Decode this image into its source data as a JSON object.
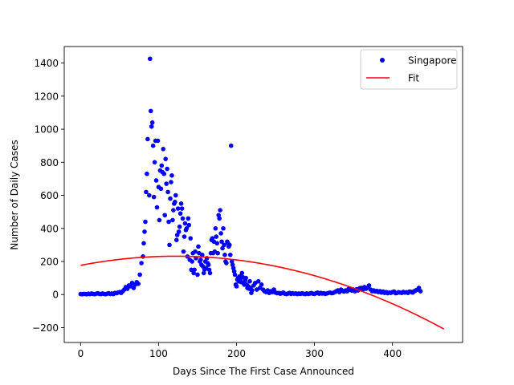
{
  "chart_data": {
    "type": "scatter",
    "title": "",
    "xlabel": "Days Since The First Case Announced",
    "ylabel": "Number of Daily Cases",
    "xlim": [
      -21,
      490
    ],
    "ylim": [
      -290,
      1500
    ],
    "xticks": [
      0,
      100,
      200,
      300,
      400
    ],
    "yticks": [
      -200,
      0,
      200,
      400,
      600,
      800,
      1000,
      1200,
      1400
    ],
    "grid": false,
    "legend": {
      "placement": "top-right",
      "entries": [
        "Singapore",
        "Fit"
      ]
    },
    "series": [
      {
        "name": "Singapore",
        "kind": "scatter",
        "color": "#0000ff",
        "points": [
          [
            0,
            3
          ],
          [
            2,
            2
          ],
          [
            4,
            4
          ],
          [
            6,
            3
          ],
          [
            8,
            2
          ],
          [
            10,
            5
          ],
          [
            12,
            3
          ],
          [
            14,
            6
          ],
          [
            16,
            4
          ],
          [
            18,
            2
          ],
          [
            20,
            5
          ],
          [
            22,
            8
          ],
          [
            24,
            4
          ],
          [
            26,
            3
          ],
          [
            28,
            6
          ],
          [
            30,
            4
          ],
          [
            32,
            2
          ],
          [
            34,
            5
          ],
          [
            36,
            8
          ],
          [
            38,
            4
          ],
          [
            40,
            6
          ],
          [
            42,
            3
          ],
          [
            44,
            10
          ],
          [
            46,
            8
          ],
          [
            48,
            12
          ],
          [
            50,
            15
          ],
          [
            52,
            10
          ],
          [
            54,
            20
          ],
          [
            56,
            30
          ],
          [
            58,
            45
          ],
          [
            60,
            35
          ],
          [
            62,
            55
          ],
          [
            64,
            50
          ],
          [
            66,
            70
          ],
          [
            68,
            40
          ],
          [
            70,
            60
          ],
          [
            72,
            75
          ],
          [
            74,
            65
          ],
          [
            76,
            120
          ],
          [
            78,
            190
          ],
          [
            80,
            230
          ],
          [
            81,
            310
          ],
          [
            82,
            380
          ],
          [
            83,
            440
          ],
          [
            84,
            620
          ],
          [
            85,
            730
          ],
          [
            86,
            940
          ],
          [
            88,
            600
          ],
          [
            89,
            1426
          ],
          [
            90,
            1110
          ],
          [
            91,
            1016
          ],
          [
            92,
            1040
          ],
          [
            93,
            900
          ],
          [
            94,
            590
          ],
          [
            95,
            800
          ],
          [
            96,
            930
          ],
          [
            97,
            690
          ],
          [
            98,
            527
          ],
          [
            99,
            930
          ],
          [
            100,
            650
          ],
          [
            101,
            450
          ],
          [
            102,
            750
          ],
          [
            103,
            640
          ],
          [
            104,
            780
          ],
          [
            105,
            740
          ],
          [
            106,
            880
          ],
          [
            107,
            730
          ],
          [
            108,
            480
          ],
          [
            109,
            820
          ],
          [
            110,
            670
          ],
          [
            111,
            760
          ],
          [
            112,
            620
          ],
          [
            113,
            440
          ],
          [
            114,
            300
          ],
          [
            115,
            580
          ],
          [
            116,
            680
          ],
          [
            117,
            720
          ],
          [
            118,
            450
          ],
          [
            119,
            510
          ],
          [
            120,
            550
          ],
          [
            121,
            560
          ],
          [
            122,
            600
          ],
          [
            123,
            330
          ],
          [
            124,
            360
          ],
          [
            125,
            520
          ],
          [
            126,
            380
          ],
          [
            127,
            410
          ],
          [
            128,
            490
          ],
          [
            129,
            550
          ],
          [
            130,
            520
          ],
          [
            131,
            460
          ],
          [
            132,
            260
          ],
          [
            133,
            350
          ],
          [
            134,
            430
          ],
          [
            135,
            390
          ],
          [
            136,
            400
          ],
          [
            137,
            230
          ],
          [
            138,
            460
          ],
          [
            139,
            420
          ],
          [
            140,
            210
          ],
          [
            141,
            340
          ],
          [
            142,
            150
          ],
          [
            143,
            200
          ],
          [
            144,
            250
          ],
          [
            145,
            130
          ],
          [
            146,
            150
          ],
          [
            147,
            260
          ],
          [
            148,
            220
          ],
          [
            150,
            120
          ],
          [
            151,
            290
          ],
          [
            152,
            250
          ],
          [
            153,
            200
          ],
          [
            154,
            210
          ],
          [
            155,
            180
          ],
          [
            156,
            240
          ],
          [
            157,
            170
          ],
          [
            158,
            130
          ],
          [
            159,
            150
          ],
          [
            160,
            200
          ],
          [
            161,
            160
          ],
          [
            162,
            220
          ],
          [
            163,
            190
          ],
          [
            164,
            180
          ],
          [
            165,
            150
          ],
          [
            166,
            130
          ],
          [
            167,
            250
          ],
          [
            168,
            330
          ],
          [
            169,
            340
          ],
          [
            170,
            250
          ],
          [
            171,
            320
          ],
          [
            172,
            260
          ],
          [
            173,
            400
          ],
          [
            174,
            350
          ],
          [
            175,
            310
          ],
          [
            176,
            250
          ],
          [
            177,
            480
          ],
          [
            178,
            460
          ],
          [
            179,
            510
          ],
          [
            180,
            370
          ],
          [
            181,
            320
          ],
          [
            182,
            280
          ],
          [
            183,
            400
          ],
          [
            184,
            300
          ],
          [
            185,
            240
          ],
          [
            186,
            200
          ],
          [
            187,
            190
          ],
          [
            188,
            320
          ],
          [
            189,
            310
          ],
          [
            190,
            290
          ],
          [
            191,
            300
          ],
          [
            192,
            240
          ],
          [
            193,
            900
          ],
          [
            194,
            200
          ],
          [
            195,
            180
          ],
          [
            196,
            160
          ],
          [
            197,
            140
          ],
          [
            198,
            120
          ],
          [
            199,
            60
          ],
          [
            200,
            50
          ],
          [
            201,
            90
          ],
          [
            202,
            100
          ],
          [
            203,
            80
          ],
          [
            204,
            110
          ],
          [
            205,
            95
          ],
          [
            206,
            75
          ],
          [
            207,
            130
          ],
          [
            208,
            105
          ],
          [
            209,
            70
          ],
          [
            210,
            60
          ],
          [
            211,
            85
          ],
          [
            212,
            100
          ],
          [
            213,
            60
          ],
          [
            214,
            40
          ],
          [
            215,
            50
          ],
          [
            216,
            35
          ],
          [
            217,
            80
          ],
          [
            218,
            40
          ],
          [
            219,
            10
          ],
          [
            220,
            25
          ],
          [
            222,
            55
          ],
          [
            224,
            70
          ],
          [
            226,
            30
          ],
          [
            228,
            80
          ],
          [
            230,
            40
          ],
          [
            232,
            60
          ],
          [
            234,
            30
          ],
          [
            236,
            20
          ],
          [
            238,
            15
          ],
          [
            240,
            25
          ],
          [
            242,
            10
          ],
          [
            244,
            20
          ],
          [
            246,
            15
          ],
          [
            248,
            30
          ],
          [
            250,
            12
          ],
          [
            252,
            8
          ],
          [
            254,
            10
          ],
          [
            256,
            5
          ],
          [
            258,
            8
          ],
          [
            260,
            12
          ],
          [
            262,
            5
          ],
          [
            264,
            3
          ],
          [
            266,
            6
          ],
          [
            268,
            10
          ],
          [
            270,
            4
          ],
          [
            272,
            8
          ],
          [
            274,
            5
          ],
          [
            276,
            7
          ],
          [
            278,
            3
          ],
          [
            280,
            6
          ],
          [
            282,
            4
          ],
          [
            284,
            8
          ],
          [
            286,
            5
          ],
          [
            288,
            3
          ],
          [
            290,
            7
          ],
          [
            292,
            4
          ],
          [
            294,
            6
          ],
          [
            296,
            9
          ],
          [
            298,
            5
          ],
          [
            300,
            4
          ],
          [
            302,
            8
          ],
          [
            304,
            12
          ],
          [
            306,
            5
          ],
          [
            308,
            10
          ],
          [
            310,
            6
          ],
          [
            312,
            8
          ],
          [
            314,
            4
          ],
          [
            316,
            7
          ],
          [
            318,
            10
          ],
          [
            320,
            12
          ],
          [
            322,
            8
          ],
          [
            324,
            10
          ],
          [
            326,
            15
          ],
          [
            328,
            20
          ],
          [
            330,
            25
          ],
          [
            332,
            15
          ],
          [
            334,
            30
          ],
          [
            336,
            22
          ],
          [
            338,
            18
          ],
          [
            340,
            25
          ],
          [
            342,
            20
          ],
          [
            344,
            35
          ],
          [
            346,
            28
          ],
          [
            348,
            24
          ],
          [
            350,
            30
          ],
          [
            352,
            20
          ],
          [
            354,
            32
          ],
          [
            356,
            25
          ],
          [
            358,
            38
          ],
          [
            360,
            40
          ],
          [
            362,
            30
          ],
          [
            364,
            45
          ],
          [
            366,
            35
          ],
          [
            368,
            42
          ],
          [
            370,
            55
          ],
          [
            372,
            30
          ],
          [
            374,
            20
          ],
          [
            376,
            25
          ],
          [
            378,
            18
          ],
          [
            380,
            22
          ],
          [
            382,
            15
          ],
          [
            384,
            20
          ],
          [
            386,
            12
          ],
          [
            388,
            18
          ],
          [
            390,
            10
          ],
          [
            392,
            15
          ],
          [
            394,
            8
          ],
          [
            396,
            12
          ],
          [
            398,
            10
          ],
          [
            400,
            15
          ],
          [
            402,
            18
          ],
          [
            404,
            8
          ],
          [
            406,
            10
          ],
          [
            408,
            14
          ],
          [
            410,
            12
          ],
          [
            412,
            10
          ],
          [
            414,
            16
          ],
          [
            416,
            12
          ],
          [
            418,
            14
          ],
          [
            420,
            10
          ],
          [
            422,
            18
          ],
          [
            424,
            16
          ],
          [
            426,
            12
          ],
          [
            428,
            20
          ],
          [
            430,
            25
          ],
          [
            432,
            30
          ],
          [
            434,
            40
          ],
          [
            436,
            20
          ]
        ]
      },
      {
        "name": "Fit",
        "kind": "line",
        "color": "#ff0000",
        "curve": {
          "x0": 0,
          "y0": 168,
          "x_peak": 122,
          "y_peak": 232,
          "x1": 467,
          "y1": -211
        }
      }
    ]
  }
}
